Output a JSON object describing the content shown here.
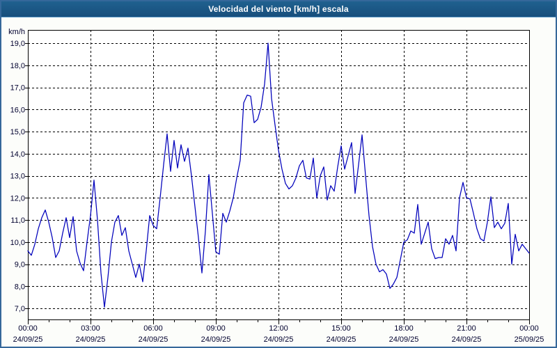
{
  "window": {
    "title": "Velocidad del viento [km/h] escala"
  },
  "colors": {
    "titlebar": "#1c5a8c",
    "frame_border": "#35689a",
    "background": "#fcfdfa",
    "plot_background": "#ffffff",
    "line": "#0000bb",
    "grid": "#000000",
    "label_text": "#00002e"
  },
  "chart_data": {
    "type": "line",
    "title": "Velocidad del viento [km/h] escala",
    "ylabel": "km/h",
    "xlabel": "",
    "ylim": [
      6.5,
      19.6
    ],
    "grid": "dashed",
    "legend": "none",
    "y_ticks": [
      {
        "value": 19,
        "label": "19,0"
      },
      {
        "value": 18,
        "label": "18,0"
      },
      {
        "value": 17,
        "label": "17,0"
      },
      {
        "value": 16,
        "label": "16,0"
      },
      {
        "value": 15,
        "label": "15,0"
      },
      {
        "value": 14,
        "label": "14,0"
      },
      {
        "value": 13,
        "label": "13,0"
      },
      {
        "value": 12,
        "label": "12,0"
      },
      {
        "value": 11,
        "label": "11,0"
      },
      {
        "value": 10,
        "label": "10,0"
      },
      {
        "value": 9,
        "label": "9,0"
      },
      {
        "value": 8,
        "label": "8,0"
      },
      {
        "value": 7,
        "label": "7,0"
      }
    ],
    "x_ticks": [
      {
        "hour": 0,
        "time": "00:00",
        "date": "24/09/25"
      },
      {
        "hour": 3,
        "time": "03:00",
        "date": "24/09/25"
      },
      {
        "hour": 6,
        "time": "06:00",
        "date": "24/09/25"
      },
      {
        "hour": 9,
        "time": "09:00",
        "date": "24/09/25"
      },
      {
        "hour": 12,
        "time": "12:00",
        "date": "24/09/25"
      },
      {
        "hour": 15,
        "time": "15:00",
        "date": "24/09/25"
      },
      {
        "hour": 18,
        "time": "18:00",
        "date": "24/09/25"
      },
      {
        "hour": 21,
        "time": "21:00",
        "date": "24/09/25"
      },
      {
        "hour": 24,
        "time": "00:00",
        "date": "25/09/25"
      }
    ],
    "x_minor_tick_every_hours": 1,
    "series": [
      {
        "name": "Velocidad del viento",
        "unit": "km/h",
        "start_time": "00:00",
        "interval_minutes": 10,
        "values": [
          9.6,
          9.4,
          9.9,
          10.6,
          11.1,
          11.45,
          10.9,
          10.2,
          9.3,
          9.6,
          10.4,
          11.1,
          10.2,
          11.15,
          9.6,
          9.05,
          8.7,
          10.0,
          11.2,
          12.8,
          11.0,
          8.6,
          7.05,
          8.4,
          10.0,
          10.9,
          11.2,
          10.3,
          10.65,
          9.6,
          9.0,
          8.4,
          9.0,
          8.2,
          9.6,
          11.2,
          10.75,
          10.6,
          12.0,
          13.5,
          14.9,
          13.2,
          14.6,
          13.35,
          14.4,
          13.65,
          14.25,
          13.0,
          11.6,
          10.2,
          8.6,
          10.5,
          13.05,
          11.3,
          9.55,
          9.45,
          11.3,
          10.9,
          11.4,
          12.0,
          12.9,
          13.7,
          16.3,
          16.65,
          16.6,
          15.4,
          15.55,
          16.1,
          17.15,
          19.0,
          16.5,
          15.3,
          14.15,
          13.3,
          12.65,
          12.4,
          12.55,
          12.9,
          13.45,
          13.7,
          12.9,
          12.85,
          13.8,
          12.0,
          13.0,
          13.4,
          11.9,
          12.55,
          12.3,
          13.4,
          14.35,
          13.3,
          13.9,
          14.5,
          12.2,
          13.5,
          14.85,
          13.0,
          11.2,
          9.8,
          9.0,
          8.65,
          8.75,
          8.55,
          7.9,
          8.1,
          8.4,
          9.2,
          10.0,
          10.1,
          10.5,
          10.4,
          11.7,
          9.9,
          10.4,
          10.9,
          9.7,
          9.25,
          9.3,
          9.3,
          10.15,
          9.9,
          10.3,
          9.6,
          12.0,
          12.7,
          12.0,
          11.95,
          11.3,
          10.6,
          10.15,
          10.05,
          10.9,
          12.05,
          10.65,
          10.9,
          10.6,
          10.85,
          11.75,
          9.0,
          10.35,
          9.6,
          9.9,
          9.7,
          9.5
        ]
      }
    ]
  }
}
